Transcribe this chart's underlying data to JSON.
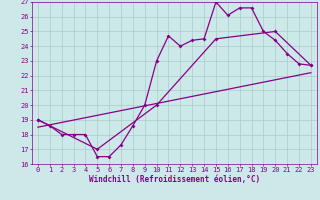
{
  "background_color": "#cce8e8",
  "grid_color": "#aacccc",
  "line_color": "#880088",
  "marker": "D",
  "markersize": 2,
  "linewidth": 0.9,
  "xlabel": "Windchill (Refroidissement éolien,°C)",
  "xlabel_fontsize": 5.5,
  "tick_fontsize": 5,
  "xlim": [
    -0.5,
    23.5
  ],
  "ylim": [
    16,
    27
  ],
  "yticks": [
    16,
    17,
    18,
    19,
    20,
    21,
    22,
    23,
    24,
    25,
    26,
    27
  ],
  "xticks": [
    0,
    1,
    2,
    3,
    4,
    5,
    6,
    7,
    8,
    9,
    10,
    11,
    12,
    13,
    14,
    15,
    16,
    17,
    18,
    19,
    20,
    21,
    22,
    23
  ],
  "line1_x": [
    0,
    1,
    2,
    3,
    4,
    5,
    6,
    7,
    8,
    9,
    10,
    11,
    12,
    13,
    14,
    15,
    16,
    17,
    18,
    19,
    20,
    21,
    22,
    23
  ],
  "line1_y": [
    19.0,
    18.6,
    18.0,
    18.0,
    18.0,
    16.5,
    16.5,
    17.3,
    18.6,
    20.0,
    23.0,
    24.7,
    24.0,
    24.4,
    24.5,
    27.0,
    26.1,
    26.6,
    26.6,
    25.0,
    24.4,
    23.5,
    22.8,
    22.7
  ],
  "line2_x": [
    0,
    5,
    10,
    15,
    20,
    23
  ],
  "line2_y": [
    19.0,
    17.0,
    20.0,
    24.5,
    25.0,
    22.7
  ],
  "line3_x": [
    0,
    23
  ],
  "line3_y": [
    18.5,
    22.2
  ]
}
